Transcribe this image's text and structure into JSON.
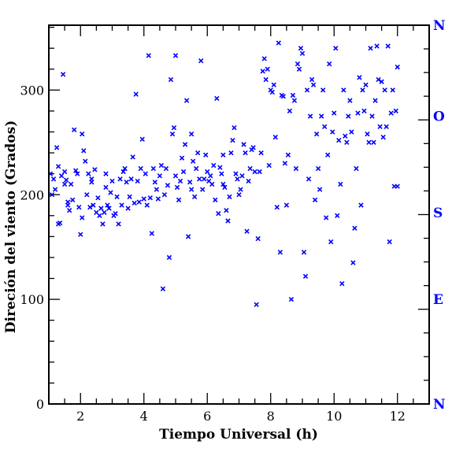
{
  "chart_data": {
    "type": "scatter",
    "xlabel": "Tiempo Universal (h)",
    "ylabel": "Direción del viento (Grados)",
    "xlim": [
      1,
      13
    ],
    "ylim": [
      0,
      362
    ],
    "x_ticks": [
      2,
      4,
      6,
      8,
      10,
      12
    ],
    "y_ticks": [
      0,
      100,
      200,
      300
    ],
    "right_axis_labels": [
      {
        "label": "N",
        "value": 362
      },
      {
        "label": "O",
        "value": 275
      },
      {
        "label": "S",
        "value": 183
      },
      {
        "label": "E",
        "value": 100
      },
      {
        "label": "N",
        "value": 0
      }
    ],
    "marker": "x",
    "series_color": "#0000ff",
    "axis_color": "#000000",
    "right_label_color": "#0000ff",
    "points": [
      [
        1.05,
        220
      ],
      [
        1.1,
        200
      ],
      [
        1.15,
        215
      ],
      [
        1.2,
        205
      ],
      [
        1.25,
        245
      ],
      [
        1.3,
        227
      ],
      [
        1.3,
        172
      ],
      [
        1.35,
        173
      ],
      [
        1.4,
        218
      ],
      [
        1.45,
        315
      ],
      [
        1.5,
        222
      ],
      [
        1.5,
        210
      ],
      [
        1.55,
        214
      ],
      [
        1.6,
        193
      ],
      [
        1.6,
        190
      ],
      [
        1.65,
        185
      ],
      [
        1.7,
        210
      ],
      [
        1.75,
        195
      ],
      [
        1.8,
        262
      ],
      [
        1.85,
        223
      ],
      [
        1.9,
        220
      ],
      [
        1.95,
        188
      ],
      [
        2.0,
        162
      ],
      [
        2.05,
        178
      ],
      [
        2.05,
        258
      ],
      [
        2.1,
        242
      ],
      [
        2.15,
        232
      ],
      [
        2.2,
        200
      ],
      [
        2.25,
        220
      ],
      [
        2.3,
        188
      ],
      [
        2.35,
        215
      ],
      [
        2.35,
        212
      ],
      [
        2.4,
        190
      ],
      [
        2.45,
        224
      ],
      [
        2.5,
        183
      ],
      [
        2.55,
        197
      ],
      [
        2.6,
        180
      ],
      [
        2.65,
        187
      ],
      [
        2.7,
        172
      ],
      [
        2.75,
        183
      ],
      [
        2.8,
        207
      ],
      [
        2.8,
        220
      ],
      [
        2.85,
        190
      ],
      [
        2.9,
        187
      ],
      [
        2.95,
        202
      ],
      [
        3.0,
        213
      ],
      [
        3.05,
        180
      ],
      [
        3.1,
        182
      ],
      [
        3.15,
        198
      ],
      [
        3.2,
        172
      ],
      [
        3.25,
        215
      ],
      [
        3.3,
        190
      ],
      [
        3.35,
        222
      ],
      [
        3.4,
        225
      ],
      [
        3.45,
        212
      ],
      [
        3.5,
        187
      ],
      [
        3.55,
        198
      ],
      [
        3.6,
        215
      ],
      [
        3.65,
        236
      ],
      [
        3.7,
        192
      ],
      [
        3.75,
        296
      ],
      [
        3.8,
        213
      ],
      [
        3.85,
        193
      ],
      [
        3.9,
        225
      ],
      [
        3.95,
        253
      ],
      [
        4.0,
        196
      ],
      [
        4.05,
        220
      ],
      [
        4.1,
        190
      ],
      [
        4.15,
        333
      ],
      [
        4.2,
        197
      ],
      [
        4.25,
        163
      ],
      [
        4.3,
        225
      ],
      [
        4.35,
        212
      ],
      [
        4.4,
        205
      ],
      [
        4.45,
        196
      ],
      [
        4.5,
        218
      ],
      [
        4.55,
        228
      ],
      [
        4.6,
        110
      ],
      [
        4.65,
        200
      ],
      [
        4.7,
        225
      ],
      [
        4.75,
        209
      ],
      [
        4.8,
        140
      ],
      [
        4.85,
        310
      ],
      [
        4.9,
        258
      ],
      [
        4.95,
        264
      ],
      [
        5.0,
        218
      ],
      [
        5.0,
        333
      ],
      [
        5.05,
        207
      ],
      [
        5.1,
        195
      ],
      [
        5.15,
        213
      ],
      [
        5.2,
        235
      ],
      [
        5.25,
        222
      ],
      [
        5.3,
        248
      ],
      [
        5.35,
        290
      ],
      [
        5.4,
        160
      ],
      [
        5.45,
        212
      ],
      [
        5.5,
        258
      ],
      [
        5.5,
        205
      ],
      [
        5.55,
        232
      ],
      [
        5.6,
        198
      ],
      [
        5.65,
        225
      ],
      [
        5.7,
        240
      ],
      [
        5.75,
        215
      ],
      [
        5.8,
        328
      ],
      [
        5.85,
        205
      ],
      [
        5.9,
        215
      ],
      [
        5.95,
        238
      ],
      [
        6.0,
        222
      ],
      [
        6.05,
        213
      ],
      [
        6.1,
        218
      ],
      [
        6.15,
        210
      ],
      [
        6.2,
        228
      ],
      [
        6.25,
        195
      ],
      [
        6.3,
        292
      ],
      [
        6.35,
        182
      ],
      [
        6.4,
        226
      ],
      [
        6.45,
        220
      ],
      [
        6.5,
        210
      ],
      [
        6.5,
        238
      ],
      [
        6.55,
        207
      ],
      [
        6.6,
        185
      ],
      [
        6.65,
        175
      ],
      [
        6.7,
        198
      ],
      [
        6.75,
        240
      ],
      [
        6.8,
        252
      ],
      [
        6.85,
        264
      ],
      [
        6.9,
        220
      ],
      [
        6.95,
        215
      ],
      [
        7.0,
        200
      ],
      [
        7.05,
        205
      ],
      [
        7.1,
        218
      ],
      [
        7.15,
        248
      ],
      [
        7.2,
        240
      ],
      [
        7.25,
        165
      ],
      [
        7.3,
        213
      ],
      [
        7.35,
        225
      ],
      [
        7.4,
        243
      ],
      [
        7.45,
        245
      ],
      [
        7.5,
        222
      ],
      [
        7.55,
        95
      ],
      [
        7.6,
        158
      ],
      [
        7.65,
        222
      ],
      [
        7.7,
        240
      ],
      [
        7.75,
        318
      ],
      [
        7.8,
        330
      ],
      [
        7.85,
        310
      ],
      [
        7.9,
        320
      ],
      [
        7.95,
        228
      ],
      [
        8.0,
        300
      ],
      [
        8.05,
        298
      ],
      [
        8.1,
        305
      ],
      [
        8.15,
        255
      ],
      [
        8.2,
        188
      ],
      [
        8.25,
        345
      ],
      [
        8.3,
        145
      ],
      [
        8.35,
        295
      ],
      [
        8.4,
        294
      ],
      [
        8.45,
        230
      ],
      [
        8.5,
        190
      ],
      [
        8.55,
        238
      ],
      [
        8.6,
        280
      ],
      [
        8.65,
        100
      ],
      [
        8.7,
        295
      ],
      [
        8.75,
        290
      ],
      [
        8.8,
        225
      ],
      [
        8.85,
        325
      ],
      [
        8.9,
        320
      ],
      [
        8.95,
        340
      ],
      [
        9.0,
        335
      ],
      [
        9.05,
        145
      ],
      [
        9.1,
        122
      ],
      [
        9.15,
        300
      ],
      [
        9.2,
        215
      ],
      [
        9.25,
        275
      ],
      [
        9.3,
        310
      ],
      [
        9.35,
        305
      ],
      [
        9.4,
        195
      ],
      [
        9.45,
        258
      ],
      [
        9.5,
        225
      ],
      [
        9.55,
        205
      ],
      [
        9.6,
        275
      ],
      [
        9.65,
        300
      ],
      [
        9.7,
        265
      ],
      [
        9.75,
        178
      ],
      [
        9.8,
        238
      ],
      [
        9.85,
        325
      ],
      [
        9.9,
        155
      ],
      [
        9.95,
        260
      ],
      [
        10.0,
        278
      ],
      [
        10.05,
        340
      ],
      [
        10.1,
        180
      ],
      [
        10.15,
        252
      ],
      [
        10.2,
        210
      ],
      [
        10.25,
        115
      ],
      [
        10.3,
        300
      ],
      [
        10.35,
        256
      ],
      [
        10.4,
        250
      ],
      [
        10.45,
        275
      ],
      [
        10.5,
        290
      ],
      [
        10.55,
        260
      ],
      [
        10.6,
        135
      ],
      [
        10.65,
        168
      ],
      [
        10.7,
        225
      ],
      [
        10.75,
        278
      ],
      [
        10.8,
        312
      ],
      [
        10.85,
        190
      ],
      [
        10.9,
        300
      ],
      [
        10.95,
        280
      ],
      [
        11.0,
        305
      ],
      [
        11.05,
        258
      ],
      [
        11.1,
        250
      ],
      [
        11.15,
        340
      ],
      [
        11.2,
        275
      ],
      [
        11.25,
        250
      ],
      [
        11.3,
        290
      ],
      [
        11.35,
        342
      ],
      [
        11.4,
        310
      ],
      [
        11.45,
        265
      ],
      [
        11.5,
        308
      ],
      [
        11.55,
        255
      ],
      [
        11.6,
        300
      ],
      [
        11.65,
        265
      ],
      [
        11.7,
        342
      ],
      [
        11.75,
        155
      ],
      [
        11.8,
        278
      ],
      [
        11.85,
        300
      ],
      [
        11.9,
        208
      ],
      [
        11.95,
        280
      ],
      [
        12.0,
        322
      ],
      [
        12.0,
        208
      ]
    ]
  }
}
